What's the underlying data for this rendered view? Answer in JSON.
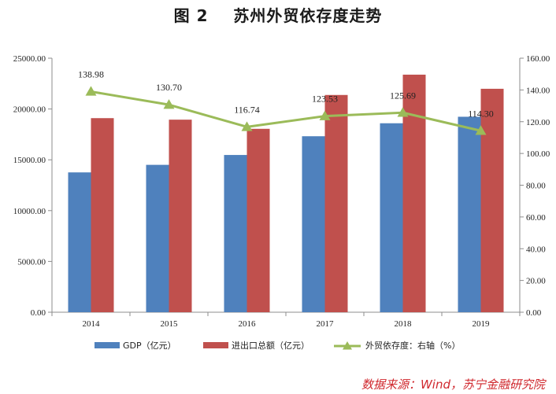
{
  "title": "图 2    苏州外贸依存度走势",
  "source": "数据来源：Wind，苏宁金融研究院",
  "colors": {
    "gdp": "#4f81bd",
    "trade": "#c0504d",
    "ratio": "#9bbb59"
  },
  "chart_data": {
    "type": "bar",
    "title": "图 2    苏州外贸依存度走势",
    "categories": [
      "2014",
      "2015",
      "2016",
      "2017",
      "2018",
      "2019"
    ],
    "series": [
      {
        "name": "GDP（亿元）",
        "type": "bar",
        "axis": "left",
        "values": [
          13761,
          14504,
          15475,
          17320,
          18597,
          19236
        ]
      },
      {
        "name": "进出口总额（亿元）",
        "type": "bar",
        "axis": "left",
        "values": [
          19100,
          18950,
          18050,
          21380,
          23380,
          21990
        ]
      },
      {
        "name": "外贸依存度：右轴（%）",
        "type": "line",
        "axis": "right",
        "values": [
          138.98,
          130.7,
          116.74,
          123.53,
          125.69,
          114.3
        ],
        "labels": [
          "138.98",
          "130.70",
          "116.74",
          "123.53",
          "125.69",
          "114.30"
        ]
      }
    ],
    "y_left": {
      "range": [
        0,
        25000
      ],
      "ticks": [
        "0.00",
        "5000.00",
        "10000.00",
        "15000.00",
        "20000.00",
        "25000.00"
      ]
    },
    "y_right": {
      "range": [
        0,
        160
      ],
      "ticks": [
        "0.00",
        "20.00",
        "40.00",
        "60.00",
        "80.00",
        "100.00",
        "120.00",
        "140.00",
        "160.00"
      ]
    },
    "grid": false,
    "legend_position": "bottom"
  }
}
